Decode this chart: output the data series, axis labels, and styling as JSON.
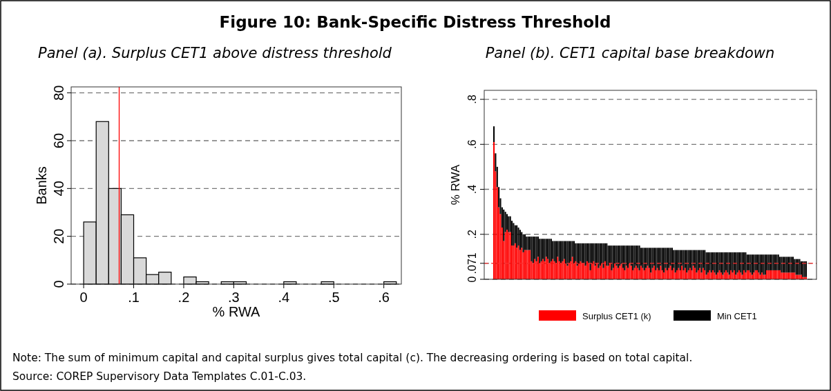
{
  "chart_data": [
    {
      "type": "other",
      "title": "Figure 10: Bank-Specific Distress Threshold",
      "annotations": [
        "Note: The sum of minimum capital and capital surplus gives total capital (c). The decreasing ordering is based on total capital.",
        "Source: COREP Supervisory Data Templates C.01-C.03."
      ]
    },
    {
      "type": "histogram",
      "title": "Panel (a). Surplus CET1 above distress threshold",
      "xlabel": "% RWA",
      "ylabel": "Banks",
      "color": "#d9d9d9",
      "bins": [
        0,
        0.025,
        0.05,
        0.075,
        0.1,
        0.125,
        0.15,
        0.175,
        0.2,
        0.225,
        0.25,
        0.275,
        0.3,
        0.325,
        0.35,
        0.375,
        0.4,
        0.425,
        0.45,
        0.475,
        0.5,
        0.525,
        0.55,
        0.575,
        0.6,
        0.625
      ],
      "values": [
        26,
        68,
        40,
        29,
        11,
        4,
        5,
        0,
        3,
        1,
        0,
        1,
        1,
        0,
        0,
        0,
        1,
        0,
        0,
        1,
        0,
        0,
        0,
        0,
        1
      ],
      "xlim": [
        -0.025,
        0.635
      ],
      "xticks": [
        0,
        {
          "value": 0.1,
          "label": ".1"
        },
        {
          "value": 0.2,
          "label": ".2"
        },
        {
          "value": 0.3,
          "label": ".3"
        },
        {
          "value": 0.4,
          "label": ".4"
        },
        {
          "value": 0.5,
          "label": ".5"
        },
        {
          "value": 0.6,
          "label": ".6"
        }
      ],
      "ylim": [
        0,
        82.5
      ],
      "yticks": [
        0,
        20,
        40,
        60,
        80
      ],
      "grid": "y",
      "ref_lines": [
        {
          "axis": "x",
          "value": 0.071,
          "color": "#ff0000",
          "line_style": "solid"
        }
      ]
    },
    {
      "type": "bar",
      "title": "Panel (b). CET1 capital base breakdown",
      "ylabel": "% RWA",
      "stacked": true,
      "legend": "bottom",
      "grid": "y",
      "categories": [
        null,
        null,
        null,
        null,
        null,
        null,
        null,
        null,
        null,
        null,
        null,
        null,
        null,
        null,
        null,
        null,
        null,
        null,
        null,
        null,
        null,
        null,
        null,
        null,
        null,
        null,
        null,
        null,
        null,
        null,
        null,
        null,
        null,
        null,
        null,
        null,
        null,
        null,
        null,
        null,
        null,
        null,
        null,
        null,
        null,
        null,
        null,
        null,
        null,
        null,
        null,
        null,
        null,
        null,
        null,
        null,
        null,
        null,
        null,
        null,
        null,
        null,
        null,
        null,
        null,
        null,
        null,
        null,
        null,
        null,
        null,
        null,
        null,
        null,
        null,
        null,
        null,
        null,
        null,
        null,
        null,
        null,
        null,
        null,
        null,
        null,
        null,
        null,
        null,
        null,
        null,
        null,
        null,
        null,
        null,
        null,
        null,
        null,
        null,
        null,
        null,
        null,
        null,
        null,
        null,
        null,
        null,
        null,
        null,
        null,
        null,
        null,
        null,
        null,
        null,
        null,
        null,
        null,
        null,
        null,
        null,
        null,
        null,
        null,
        null,
        null,
        null,
        null,
        null,
        null,
        null,
        null,
        null,
        null,
        null,
        null,
        null,
        null,
        null,
        null,
        null,
        null,
        null,
        null,
        null,
        null,
        null,
        null,
        null,
        null,
        null,
        null,
        null,
        null,
        null,
        null,
        null,
        null,
        null,
        null,
        null,
        null,
        null,
        null,
        null,
        null,
        null,
        null,
        null,
        null,
        null,
        null,
        null,
        null,
        null,
        null,
        null,
        null,
        null,
        null,
        null,
        null,
        null,
        null,
        null,
        null,
        null,
        null,
        null,
        null,
        null,
        null
      ],
      "ylim": [
        0,
        0.84
      ],
      "yticks": [
        0,
        {
          "value": 0.071,
          "label": ".071"
        },
        {
          "value": 0.2,
          "label": ".2"
        },
        {
          "value": 0.4,
          "label": ".4"
        },
        {
          "value": 0.6,
          "label": ".6"
        },
        {
          "value": 0.8,
          "label": ".8"
        }
      ],
      "ref_lines": [
        {
          "axis": "y",
          "value": 0.071,
          "color": "#ff3333",
          "line_style": "dashed"
        }
      ],
      "series": [
        {
          "name": "Surplus CET1 (k)",
          "color": "#ff0000",
          "values": [
            0.61,
            0.48,
            0.41,
            0.32,
            0.29,
            0.23,
            0.17,
            0.21,
            0.22,
            0.21,
            0.21,
            0.15,
            0.15,
            0.16,
            0.14,
            0.15,
            0.13,
            0.14,
            0.12,
            0.13,
            0.13,
            0.13,
            0.13,
            0.08,
            0.07,
            0.09,
            0.08,
            0.1,
            0.07,
            0.08,
            0.09,
            0.08,
            0.1,
            0.09,
            0.07,
            0.08,
            0.09,
            0.08,
            0.07,
            0.1,
            0.08,
            0.07,
            0.08,
            0.09,
            0.07,
            0.06,
            0.07,
            0.08,
            0.1,
            0.07,
            0.08,
            0.06,
            0.07,
            0.08,
            0.07,
            0.07,
            0.06,
            0.08,
            0.07,
            0.04,
            0.07,
            0.08,
            0.06,
            0.07,
            0.05,
            0.06,
            0.07,
            0.05,
            0.08,
            0.06,
            0.06,
            0.07,
            0.04,
            0.05,
            0.07,
            0.06,
            0.05,
            0.06,
            0.07,
            0.05,
            0.04,
            0.06,
            0.05,
            0.07,
            0.06,
            0.04,
            0.05,
            0.06,
            0.05,
            0.04,
            0.06,
            0.05,
            0.04,
            0.05,
            0.06,
            0.05,
            0.03,
            0.05,
            0.06,
            0.04,
            0.05,
            0.04,
            0.06,
            0.04,
            0.03,
            0.05,
            0.04,
            0.05,
            0.06,
            0.04,
            0.05,
            0.03,
            0.04,
            0.05,
            0.04,
            0.06,
            0.04,
            0.05,
            0.03,
            0.04,
            0.05,
            0.04,
            0.06,
            0.05,
            0.03,
            0.04,
            0.05,
            0.03,
            0.05,
            0.04,
            0.02,
            0.03,
            0.04,
            0.03,
            0.04,
            0.03,
            0.02,
            0.03,
            0.04,
            0.03,
            0.02,
            0.03,
            0.04,
            0.03,
            0.02,
            0.04,
            0.03,
            0.04,
            0.02,
            0.03,
            0.04,
            0.03,
            0.02,
            0.04,
            0.03,
            0.04,
            0.04,
            0.03,
            0.02,
            0.03,
            0.04,
            0.04,
            0.03,
            0.02,
            0.03,
            0.02,
            0.02,
            0.04,
            0.04,
            0.04,
            0.04,
            0.04,
            0.04,
            0.04,
            0.04,
            0.04,
            0.03,
            0.03,
            0.03,
            0.03,
            0.03,
            0.03,
            0.03,
            0.03,
            0.03,
            0.02,
            0.02,
            0.02,
            0.02,
            0.01,
            0.01,
            0.01
          ]
        },
        {
          "name": "Min CET1",
          "color": "#000000",
          "values": [
            0.07,
            0.08,
            0.09,
            0.09,
            0.07,
            0.09,
            0.14,
            0.09,
            0.07,
            0.07,
            0.07,
            0.11,
            0.1,
            0.08,
            0.1,
            0.08,
            0.09,
            0.07,
            0.08,
            0.07,
            0.06,
            0.06,
            0.06,
            0.11,
            0.12,
            0.1,
            0.11,
            0.09,
            0.11,
            0.1,
            0.09,
            0.1,
            0.08,
            0.09,
            0.11,
            0.1,
            0.08,
            0.09,
            0.1,
            0.07,
            0.09,
            0.1,
            0.09,
            0.08,
            0.1,
            0.11,
            0.1,
            0.09,
            0.07,
            0.1,
            0.08,
            0.1,
            0.09,
            0.08,
            0.09,
            0.09,
            0.1,
            0.08,
            0.09,
            0.12,
            0.09,
            0.08,
            0.1,
            0.09,
            0.11,
            0.1,
            0.09,
            0.11,
            0.08,
            0.1,
            0.09,
            0.08,
            0.11,
            0.1,
            0.08,
            0.09,
            0.1,
            0.09,
            0.08,
            0.1,
            0.11,
            0.09,
            0.1,
            0.08,
            0.09,
            0.11,
            0.1,
            0.09,
            0.1,
            0.11,
            0.08,
            0.09,
            0.1,
            0.09,
            0.08,
            0.09,
            0.11,
            0.09,
            0.08,
            0.1,
            0.09,
            0.1,
            0.08,
            0.1,
            0.11,
            0.09,
            0.1,
            0.09,
            0.08,
            0.1,
            0.08,
            0.1,
            0.09,
            0.08,
            0.09,
            0.07,
            0.09,
            0.08,
            0.1,
            0.09,
            0.08,
            0.09,
            0.07,
            0.08,
            0.1,
            0.09,
            0.08,
            0.1,
            0.08,
            0.09,
            0.1,
            0.09,
            0.08,
            0.09,
            0.08,
            0.09,
            0.1,
            0.09,
            0.08,
            0.09,
            0.1,
            0.09,
            0.08,
            0.09,
            0.1,
            0.08,
            0.09,
            0.08,
            0.1,
            0.09,
            0.08,
            0.09,
            0.1,
            0.08,
            0.09,
            0.07,
            0.07,
            0.08,
            0.09,
            0.08,
            0.07,
            0.07,
            0.08,
            0.09,
            0.08,
            0.09,
            0.09,
            0.07,
            0.07,
            0.07,
            0.07,
            0.07,
            0.07,
            0.07,
            0.07,
            0.06,
            0.07,
            0.07,
            0.07,
            0.07,
            0.07,
            0.07,
            0.07,
            0.07,
            0.06,
            0.07,
            0.07,
            0.07,
            0.06,
            0.07,
            0.07,
            0.07
          ]
        }
      ]
    }
  ]
}
